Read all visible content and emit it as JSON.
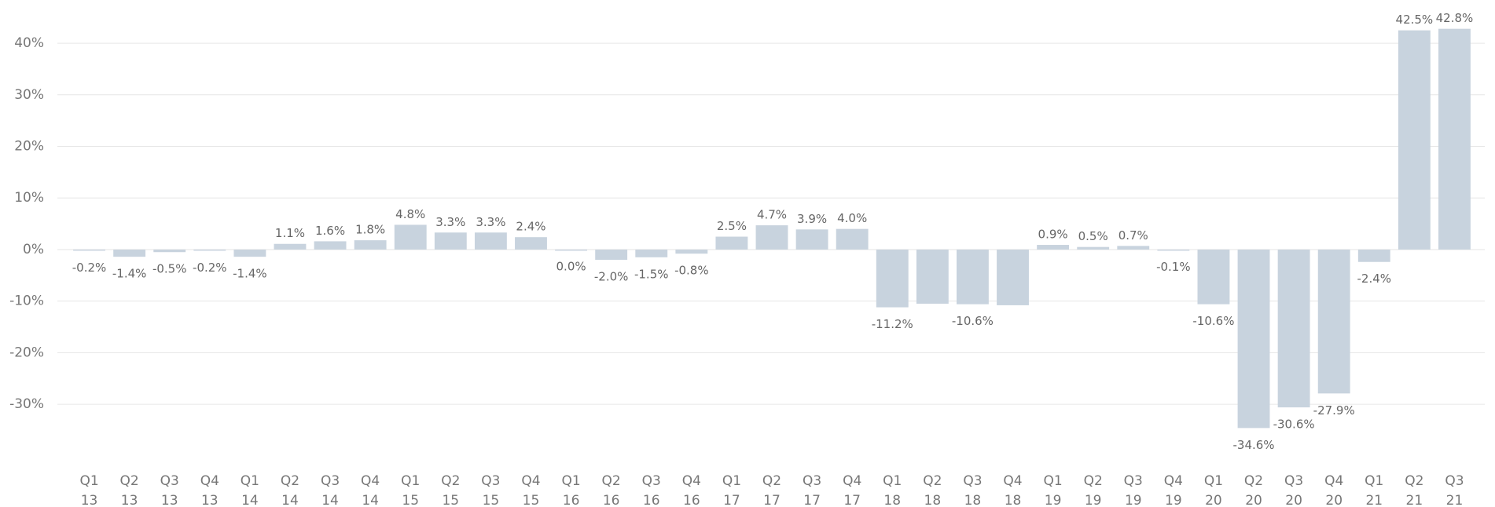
{
  "chart_data": {
    "type": "bar",
    "categories": [
      [
        "Q1",
        "13"
      ],
      [
        "Q2",
        "13"
      ],
      [
        "Q3",
        "13"
      ],
      [
        "Q4",
        "13"
      ],
      [
        "Q1",
        "14"
      ],
      [
        "Q2",
        "14"
      ],
      [
        "Q3",
        "14"
      ],
      [
        "Q4",
        "14"
      ],
      [
        "Q1",
        "15"
      ],
      [
        "Q2",
        "15"
      ],
      [
        "Q3",
        "15"
      ],
      [
        "Q4",
        "15"
      ],
      [
        "Q1",
        "16"
      ],
      [
        "Q2",
        "16"
      ],
      [
        "Q3",
        "16"
      ],
      [
        "Q4",
        "16"
      ],
      [
        "Q1",
        "17"
      ],
      [
        "Q2",
        "17"
      ],
      [
        "Q3",
        "17"
      ],
      [
        "Q4",
        "17"
      ],
      [
        "Q1",
        "18"
      ],
      [
        "Q2",
        "18"
      ],
      [
        "Q3",
        "18"
      ],
      [
        "Q4",
        "18"
      ],
      [
        "Q1",
        "19"
      ],
      [
        "Q2",
        "19"
      ],
      [
        "Q3",
        "19"
      ],
      [
        "Q4",
        "19"
      ],
      [
        "Q1",
        "20"
      ],
      [
        "Q2",
        "20"
      ],
      [
        "Q3",
        "20"
      ],
      [
        "Q4",
        "20"
      ],
      [
        "Q1",
        "21"
      ],
      [
        "Q2",
        "21"
      ],
      [
        "Q3",
        "21"
      ]
    ],
    "values": [
      -0.2,
      -1.4,
      -0.5,
      -0.2,
      -1.4,
      1.1,
      1.6,
      1.8,
      4.8,
      3.3,
      3.3,
      2.4,
      0.0,
      -2.0,
      -1.5,
      -0.8,
      2.5,
      4.7,
      3.9,
      4.0,
      -11.2,
      -10.5,
      -10.6,
      -10.8,
      0.9,
      0.5,
      0.7,
      -0.1,
      -10.6,
      -34.6,
      -30.6,
      -27.9,
      -2.4,
      42.5,
      42.8
    ],
    "value_labels": [
      "-0.2%",
      "-1.4%",
      "-0.5%",
      "-0.2%",
      "-1.4%",
      "1.1%",
      "1.6%",
      "1.8%",
      "4.8%",
      "3.3%",
      "3.3%",
      "2.4%",
      "0.0%",
      "-2.0%",
      "-1.5%",
      "-0.8%",
      "2.5%",
      "4.7%",
      "3.9%",
      "4.0%",
      "-11.2%",
      null,
      "-10.6%",
      null,
      "0.9%",
      "0.5%",
      "0.7%",
      "-0.1%",
      "-10.6%",
      "-34.6%",
      "-30.6%",
      "-27.9%",
      "-2.4%",
      "42.5%",
      "42.8%"
    ],
    "color": "#c8d3de",
    "ylim": [
      -38,
      48
    ],
    "yticks": [
      {
        "value": -30,
        "label": "-30%"
      },
      {
        "value": -20,
        "label": "-20%"
      },
      {
        "value": -10,
        "label": "-10%"
      },
      {
        "value": 0,
        "label": "0%"
      },
      {
        "value": 10,
        "label": "10%"
      },
      {
        "value": 20,
        "label": "20%"
      },
      {
        "value": 30,
        "label": "30%"
      },
      {
        "value": 40,
        "label": "40%"
      }
    ],
    "grid": true
  }
}
